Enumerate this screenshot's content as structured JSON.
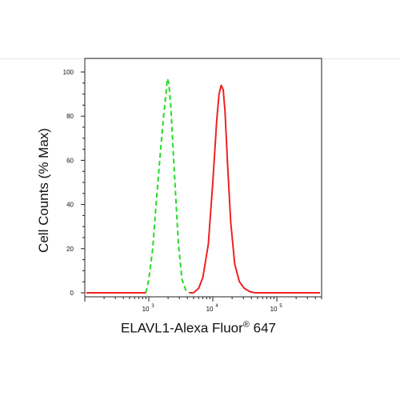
{
  "chart_data": {
    "type": "line",
    "xlabel_main": "ELAVL1-Alexa Fluor",
    "xlabel_sup": "®",
    "xlabel_tail": " 647",
    "ylabel": "Cell Counts (% Max)",
    "xscale": "log",
    "xlim": [
      100,
      500000
    ],
    "ylim": [
      0,
      100
    ],
    "y_ticks": [
      "0",
      "20",
      "40",
      "60",
      "80",
      "100"
    ],
    "x_tick_labels": [
      {
        "base": "10",
        "exp": "3",
        "value": 1000
      },
      {
        "base": "10",
        "exp": "4",
        "value": 10000
      },
      {
        "base": "10",
        "exp": "5",
        "value": 100000
      }
    ],
    "series": [
      {
        "color": "#22dd22",
        "dash": "dashed",
        "x": [
          900,
          1000,
          1150,
          1300,
          1500,
          1700,
          1850,
          1950,
          2050,
          2200,
          2500,
          2900,
          3300,
          3800,
          4300
        ],
        "y": [
          0,
          6,
          20,
          40,
          62,
          80,
          90,
          97,
          95,
          85,
          55,
          22,
          6,
          1,
          0
        ]
      },
      {
        "color": "#ee2222",
        "dash": "solid",
        "x": [
          5000,
          6000,
          7000,
          8500,
          10000,
          11500,
          12500,
          13500,
          14500,
          15500,
          17000,
          19000,
          22000,
          26000,
          31000,
          38000,
          45000
        ],
        "y": [
          0,
          2,
          7,
          22,
          50,
          78,
          90,
          94,
          92,
          82,
          58,
          32,
          13,
          5,
          2,
          0.5,
          0
        ]
      }
    ]
  }
}
